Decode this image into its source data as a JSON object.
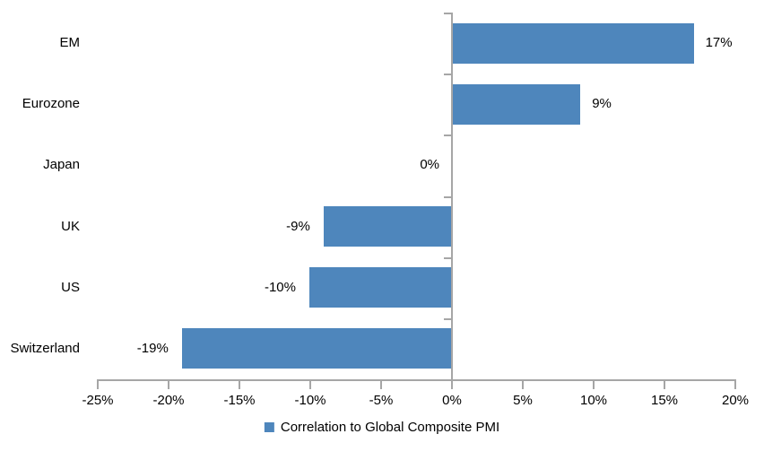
{
  "chart_data": {
    "type": "bar",
    "orientation": "horizontal",
    "title": "",
    "categories": [
      "EM",
      "Eurozone",
      "Japan",
      "UK",
      "US",
      "Switzerland"
    ],
    "values": [
      17,
      9,
      0,
      -9,
      -10,
      -19
    ],
    "value_labels": [
      "17%",
      "9%",
      "0%",
      "-9%",
      "-10%",
      "-19%"
    ],
    "series": [
      {
        "name": "Correlation to Global Composite PMI",
        "values": [
          17,
          9,
          0,
          -9,
          -10,
          -19
        ]
      }
    ],
    "x_axis": {
      "min": -25,
      "max": 20,
      "step": 5,
      "tick_labels": [
        "-25%",
        "-20%",
        "-15%",
        "-10%",
        "-5%",
        "0%",
        "5%",
        "10%",
        "15%",
        "20%"
      ]
    },
    "y_axis": {
      "label": ""
    },
    "legend": {
      "position": "bottom",
      "label": "Correlation to Global Composite PMI"
    },
    "grid": false,
    "colors": {
      "bar": "#4E86BC",
      "axis": "#A6A6A6",
      "text": "#000000",
      "background": "#FFFFFF"
    }
  }
}
